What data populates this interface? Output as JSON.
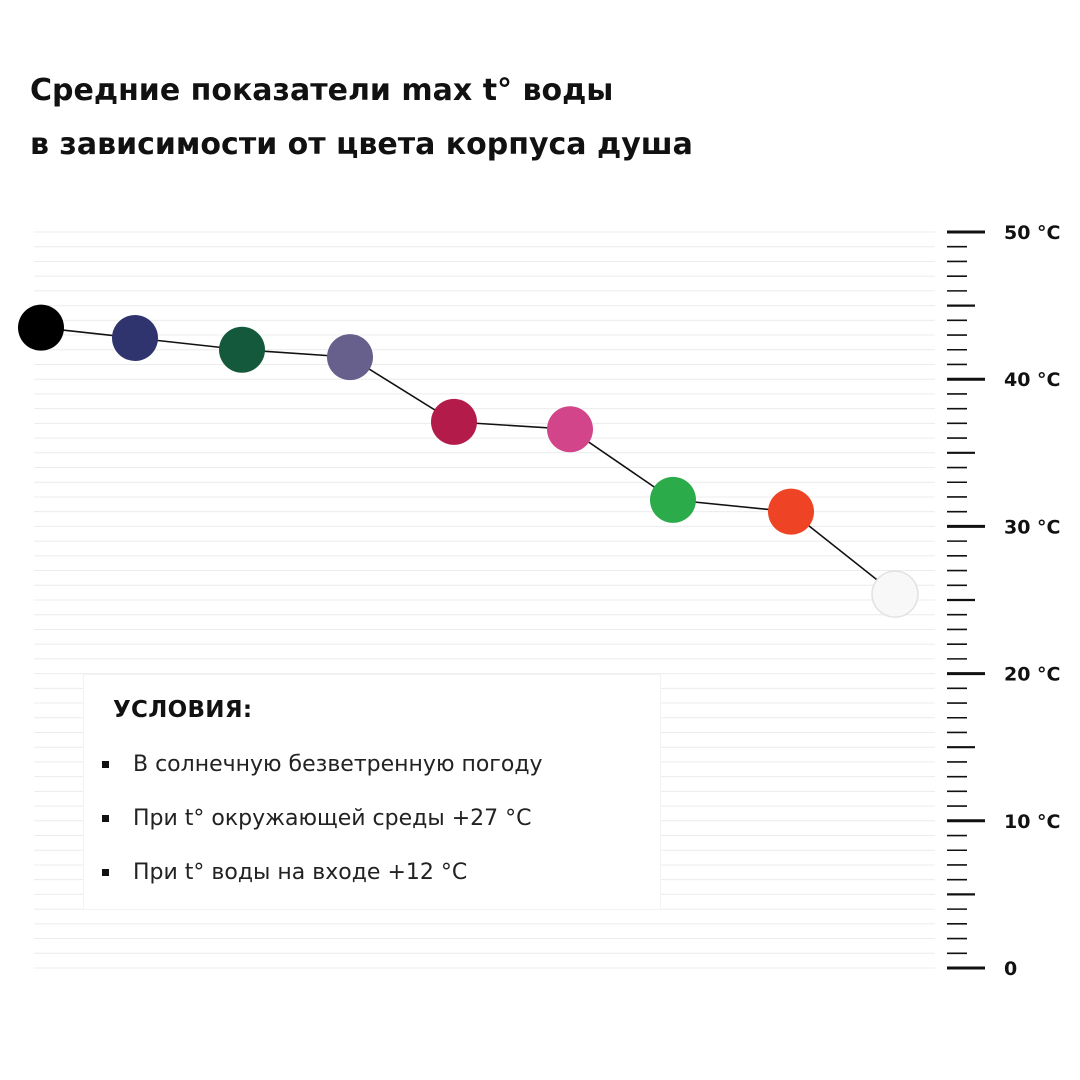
{
  "title": {
    "line1": "Средние показатели max t° воды",
    "line2": "в зависимости от цвета корпуса душа"
  },
  "conditions": {
    "heading": "УСЛОВИЯ:",
    "items": [
      "В солнечную безветренную погоду",
      "При t° окружающей среды +27 °C",
      "При t° воды на входе +12 °C"
    ]
  },
  "chart_data": {
    "type": "line",
    "title": "Средние показатели max t° воды в зависимости от цвета корпуса душа",
    "xlabel": "",
    "ylabel": "",
    "ylim": [
      0,
      50
    ],
    "y_ticks": [
      {
        "value": 50,
        "label": "50 °C"
      },
      {
        "value": 40,
        "label": "40 °C"
      },
      {
        "value": 30,
        "label": "30 °C"
      },
      {
        "value": 20,
        "label": "20 °C"
      },
      {
        "value": 10,
        "label": "10 °C"
      },
      {
        "value": 0,
        "label": "0"
      }
    ],
    "minor_tick_step": 1,
    "grid": true,
    "axis_position": "right",
    "points": [
      {
        "color": "#000000",
        "value": 43.5
      },
      {
        "color": "#2f346f",
        "value": 42.8
      },
      {
        "color": "#14593c",
        "value": 42.0
      },
      {
        "color": "#67608c",
        "value": 41.5
      },
      {
        "color": "#b31c4a",
        "value": 37.1
      },
      {
        "color": "#d2458a",
        "value": 36.6
      },
      {
        "color": "#2bab4a",
        "value": 31.8
      },
      {
        "color": "#ee4425",
        "value": 31.0
      },
      {
        "color": "#f8f8f8",
        "value": 25.4
      }
    ]
  }
}
